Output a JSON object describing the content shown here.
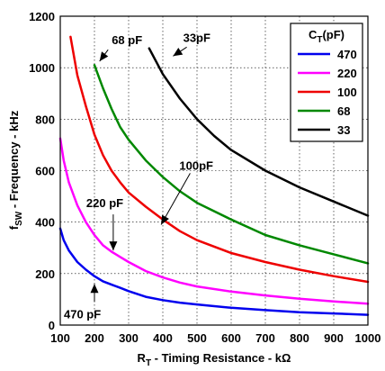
{
  "chart_data": {
    "type": "line",
    "title": "",
    "xlabel": "R",
    "xlabel_sub": "T",
    "xlabel_rest": " - Timing Resistance - kΩ",
    "ylabel": "f",
    "ylabel_sub": "SW",
    "ylabel_rest": " - Frequency - kHz",
    "xlim": [
      100,
      1000
    ],
    "ylim": [
      0,
      1200
    ],
    "xticks": [
      100,
      200,
      300,
      400,
      500,
      600,
      700,
      800,
      900,
      1000
    ],
    "yticks": [
      0,
      200,
      400,
      600,
      800,
      1000,
      1200
    ],
    "grid": true,
    "legend": {
      "title": "C",
      "title_sub": "T",
      "title_rest": "(pF)",
      "position": "top-right"
    },
    "series": [
      {
        "name": "470",
        "color": "#0000ee",
        "points": [
          [
            100,
            375
          ],
          [
            110,
            330
          ],
          [
            125,
            290
          ],
          [
            150,
            245
          ],
          [
            175,
            215
          ],
          [
            200,
            190
          ],
          [
            225,
            170
          ],
          [
            250,
            157
          ],
          [
            275,
            145
          ],
          [
            300,
            132
          ],
          [
            350,
            110
          ],
          [
            400,
            97
          ],
          [
            450,
            87
          ],
          [
            500,
            80
          ],
          [
            600,
            67
          ],
          [
            700,
            58
          ],
          [
            800,
            50
          ],
          [
            900,
            45
          ],
          [
            1000,
            40
          ]
        ]
      },
      {
        "name": "220",
        "color": "#ff00ff",
        "points": [
          [
            100,
            725
          ],
          [
            110,
            640
          ],
          [
            125,
            555
          ],
          [
            150,
            465
          ],
          [
            175,
            400
          ],
          [
            200,
            350
          ],
          [
            225,
            310
          ],
          [
            250,
            285
          ],
          [
            275,
            265
          ],
          [
            300,
            245
          ],
          [
            350,
            210
          ],
          [
            400,
            185
          ],
          [
            450,
            165
          ],
          [
            500,
            150
          ],
          [
            600,
            130
          ],
          [
            700,
            115
          ],
          [
            800,
            102
          ],
          [
            900,
            92
          ],
          [
            1000,
            83
          ]
        ]
      },
      {
        "name": "100",
        "color": "#ee0000",
        "points": [
          [
            130,
            1120
          ],
          [
            150,
            970
          ],
          [
            175,
            850
          ],
          [
            200,
            740
          ],
          [
            225,
            660
          ],
          [
            250,
            600
          ],
          [
            275,
            555
          ],
          [
            300,
            515
          ],
          [
            350,
            460
          ],
          [
            400,
            410
          ],
          [
            450,
            365
          ],
          [
            500,
            330
          ],
          [
            600,
            280
          ],
          [
            700,
            245
          ],
          [
            800,
            215
          ],
          [
            900,
            190
          ],
          [
            1000,
            168
          ]
        ]
      },
      {
        "name": "68",
        "color": "#008800",
        "points": [
          [
            200,
            1010
          ],
          [
            225,
            920
          ],
          [
            250,
            840
          ],
          [
            275,
            770
          ],
          [
            300,
            720
          ],
          [
            350,
            640
          ],
          [
            400,
            575
          ],
          [
            450,
            520
          ],
          [
            500,
            475
          ],
          [
            600,
            410
          ],
          [
            700,
            350
          ],
          [
            800,
            310
          ],
          [
            900,
            275
          ],
          [
            1000,
            240
          ]
        ]
      },
      {
        "name": "33",
        "color": "#000000",
        "points": [
          [
            360,
            1075
          ],
          [
            400,
            975
          ],
          [
            450,
            880
          ],
          [
            500,
            800
          ],
          [
            550,
            735
          ],
          [
            600,
            680
          ],
          [
            700,
            600
          ],
          [
            800,
            535
          ],
          [
            900,
            480
          ],
          [
            1000,
            425
          ]
        ]
      }
    ],
    "annotations": [
      {
        "text": "68 pF",
        "data_x": 215,
        "data_y": 1025,
        "anchor_x": 240,
        "anchor_y": 1070
      },
      {
        "text": "33pF",
        "data_x": 430,
        "data_y": 1045,
        "anchor_x": 470,
        "anchor_y": 1080
      },
      {
        "text": "100pF",
        "data_x": 395,
        "data_y": 390,
        "anchor_x": 480,
        "anchor_y": 590
      },
      {
        "text": "220 pF",
        "data_x": 255,
        "data_y": 290,
        "anchor_x": 255,
        "anchor_y": 430
      },
      {
        "text": "470 pF",
        "data_x": 200,
        "data_y": 160,
        "anchor_x": 200,
        "anchor_y": 90
      }
    ]
  }
}
